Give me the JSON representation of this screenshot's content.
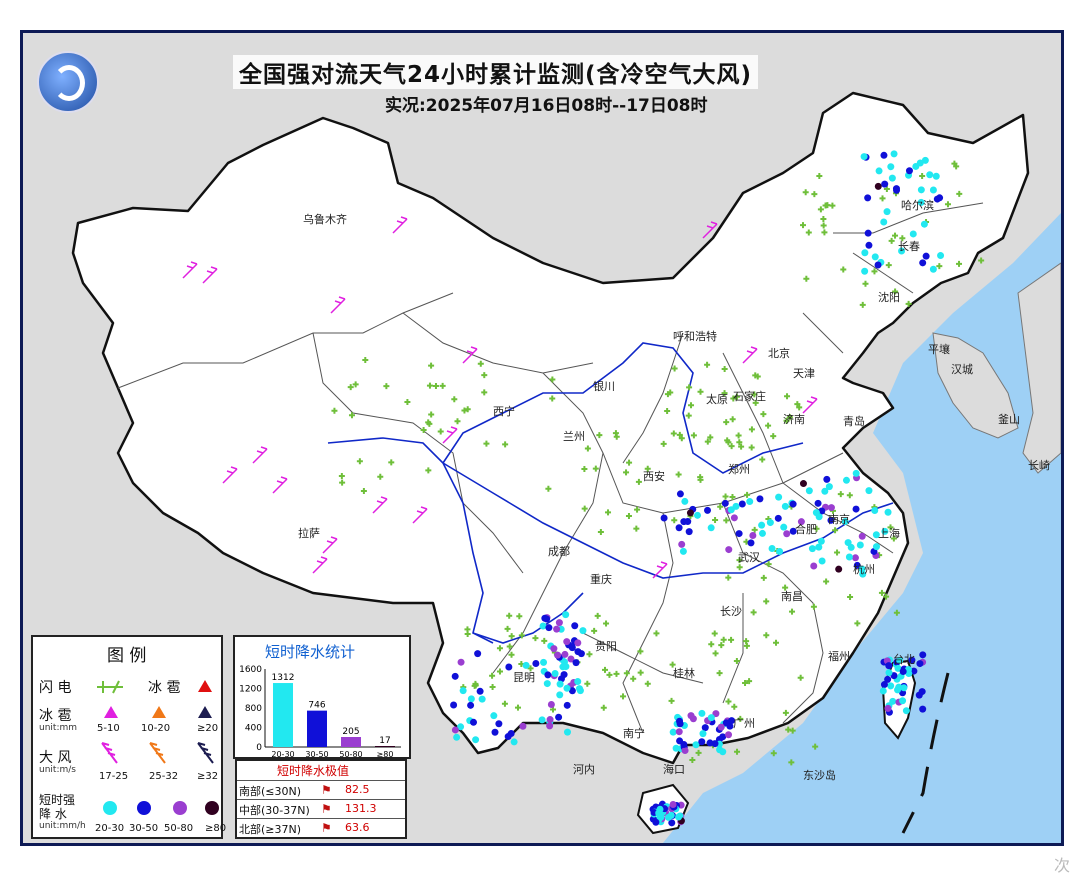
{
  "title": "全国强对流天气24小时累计监测(含冷空气大风)",
  "subtitle": "实况:2025年07月16日08时--17日08时",
  "logo_icon": "cma-logo-icon",
  "colors": {
    "land": "#ffffff",
    "neighbor": "#dcdcdc",
    "sea": "#9ed0f5",
    "lightning": "#6fbf3a",
    "hail_small": "#e020e0",
    "hail_mid": "#f07818",
    "hail_big": "#1c1c50",
    "rain_20_30": "#22e8f0",
    "rain_30_50": "#1010d8",
    "rain_50_80": "#9a3ed0",
    "rain_80": "#300020",
    "border": "#1a1a4a",
    "river": "#1028c8"
  },
  "cities": [
    "乌鲁木齐",
    "哈尔滨",
    "长春",
    "沈阳",
    "呼和浩特",
    "北京",
    "天津",
    "太原",
    "石家庄",
    "济南",
    "青岛",
    "银川",
    "西宁",
    "兰州",
    "西安",
    "郑州",
    "拉萨",
    "成都",
    "重庆",
    "武汉",
    "合肥",
    "南京",
    "上海",
    "杭州",
    "南昌",
    "长沙",
    "贵阳",
    "昆明",
    "南宁",
    "广州",
    "桂林",
    "海口",
    "福州",
    "台北",
    "平壤",
    "汉城",
    "釜山",
    "长崎",
    "河内",
    "东沙岛"
  ],
  "legend": {
    "title": "图 例",
    "lightning_label": "闪 电",
    "hail_label": "冰 雹",
    "hail_label2": "冰 雹",
    "hail_unit": "unit:mm",
    "hail_ranges": [
      "5-10",
      "10-20",
      "≥20"
    ],
    "wind_label": "大 风",
    "wind_unit": "unit:m/s",
    "wind_ranges": [
      "17-25",
      "25-32",
      "≥32"
    ],
    "rain_label": "短时强\n降 水",
    "rain_label_line1": "短时强",
    "rain_label_line2": "降 水",
    "rain_unit": "unit:mm/h",
    "rain_ranges": [
      "20-30",
      "30-50",
      "50-80",
      "≥80"
    ]
  },
  "stats": {
    "title": "短时降水统计",
    "chart_data": {
      "type": "bar",
      "categories": [
        "20-30",
        "30-50",
        "50-80",
        "≥80"
      ],
      "values": [
        1312,
        746,
        205,
        17
      ],
      "yticks": [
        "0",
        "400",
        "800",
        "1200",
        "1600"
      ],
      "ylim": [
        0,
        1600
      ],
      "colors": [
        "#22e8f0",
        "#1010d8",
        "#9a3ed0",
        "#300020"
      ]
    }
  },
  "extreme": {
    "title": "短时降水极值",
    "rows": [
      {
        "label": "南部(≤30N)",
        "value": "82.5"
      },
      {
        "label": "中部(30-37N)",
        "value": "131.3"
      },
      {
        "label": "北部(≥37N)",
        "value": "63.6"
      }
    ]
  },
  "watermark": "次"
}
